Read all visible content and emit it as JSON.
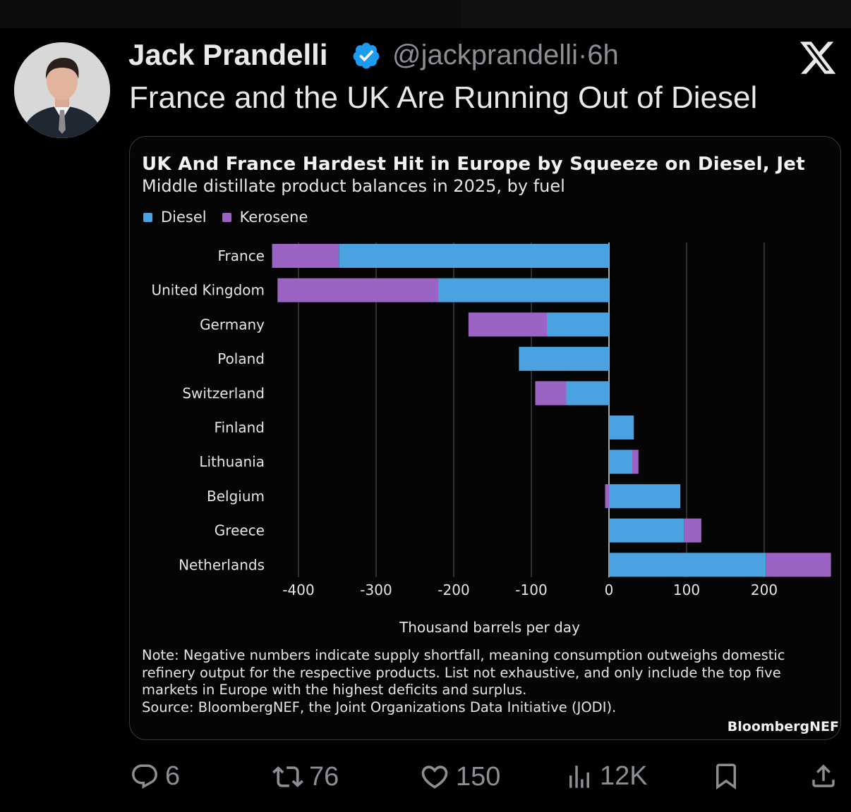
{
  "tweet": {
    "author_name": "Jack Prandelli",
    "handle": "@jackprandelli",
    "separator": "·",
    "time": "6h",
    "text": "France and the UK Are Running Out of Diesel"
  },
  "actions": {
    "replies": "6",
    "reposts": "76",
    "likes": "150",
    "views": "12K"
  },
  "colors": {
    "diesel": "#4aa3e0",
    "kerosene": "#9a63c4",
    "verified": "#1d9bf0"
  },
  "chart_data": {
    "type": "bar",
    "orientation": "horizontal",
    "stacked": true,
    "title": "UK And France Hardest Hit in Europe by Squeeze on Diesel, Jet",
    "subtitle": "Middle distillate product balances in 2025, by fuel",
    "legend": [
      "Diesel",
      "Kerosene"
    ],
    "categories": [
      "France",
      "United Kingdom",
      "Germany",
      "Poland",
      "Switzerland",
      "Finland",
      "Lithuania",
      "Belgium",
      "Greece",
      "Netherlands"
    ],
    "series": [
      {
        "name": "Diesel",
        "values": [
          -348,
          -220,
          -80,
          -116,
          -55,
          32,
          30,
          92,
          97,
          202
        ]
      },
      {
        "name": "Kerosene",
        "values": [
          -86,
          -207,
          -101,
          0,
          -40,
          0,
          8,
          -5,
          22,
          84
        ]
      }
    ],
    "xlabel": "Thousand barrels per day",
    "xlim": [
      -435,
      290
    ],
    "xticks": [
      -400,
      -300,
      -200,
      -100,
      0,
      100,
      200
    ],
    "note": "Note: Negative numbers indicate supply shortfall, meaning consumption outweighs domestic refinery output for the respective products. List not exhaustive, and only include the top five markets in Europe with the highest deficits and surplus.",
    "source": "Source: BloombergNEF, the Joint Organizations Data Initiative (JODI).",
    "brand": "BloombergNEF"
  }
}
